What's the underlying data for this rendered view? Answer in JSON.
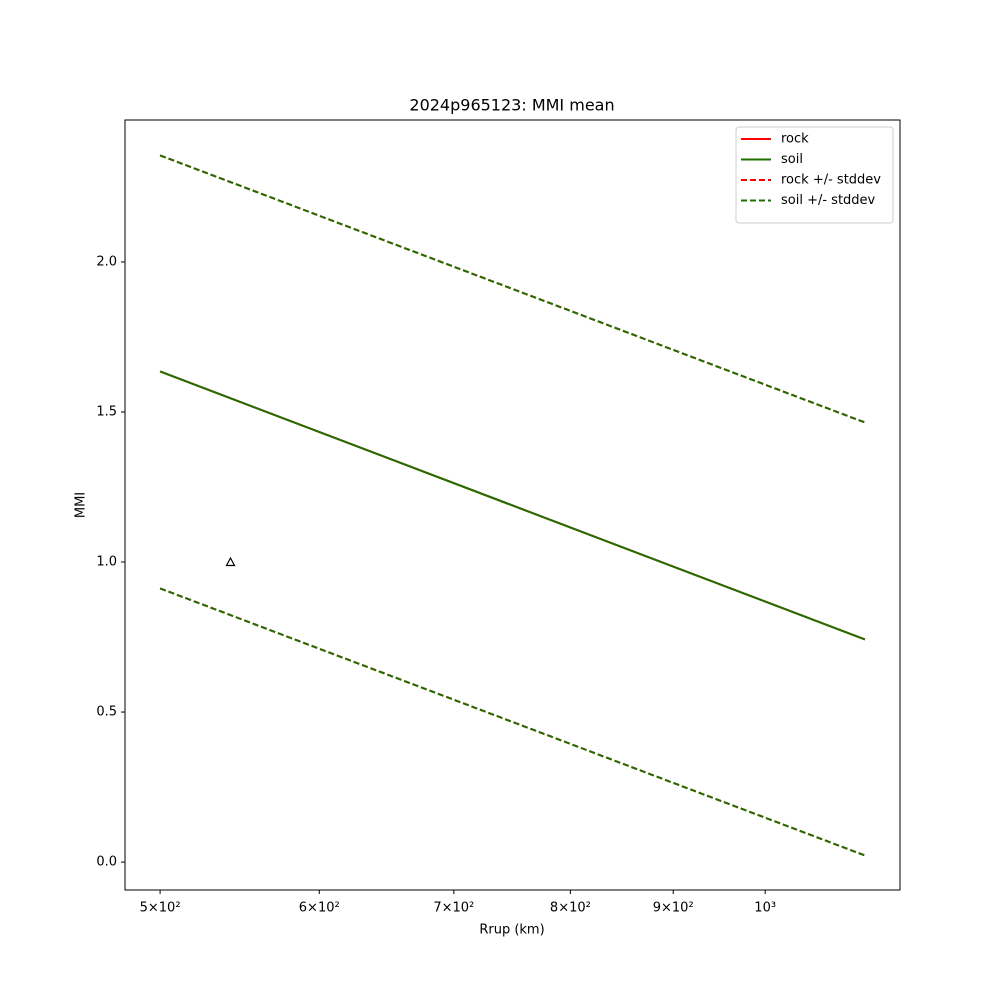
{
  "chart_data": {
    "type": "line",
    "title": "2024p965123: MMI mean",
    "xlabel": "Rrup (km)",
    "ylabel": "MMI",
    "xscale": "log",
    "xlim": [
      480.3,
      1167
    ],
    "ylim": [
      -0.093,
      2.473
    ],
    "xticks": [
      {
        "value": 500,
        "label": "5×10²"
      },
      {
        "value": 600,
        "label": "6×10²"
      },
      {
        "value": 700,
        "label": "7×10²"
      },
      {
        "value": 800,
        "label": "8×10²"
      },
      {
        "value": 900,
        "label": "9×10²"
      },
      {
        "value": 1000,
        "label": "10³"
      }
    ],
    "yticks": [
      {
        "value": 0,
        "label": "0.0"
      },
      0.5,
      {
        "value": 1,
        "label": "1.0"
      },
      1.5,
      {
        "value": 2,
        "label": "2.0"
      }
    ],
    "x": [
      500,
      1121
    ],
    "series": [
      {
        "name": "rock",
        "color": "#ff0000",
        "style": "solid",
        "values": [
          1.635,
          0.742
        ]
      },
      {
        "name": "soil",
        "color": "#1f7000",
        "style": "solid",
        "values": [
          1.635,
          0.742
        ]
      },
      {
        "name": "rock +/- stddev",
        "color": "#ff0000",
        "style": "dashed",
        "upper": [
          2.355,
          1.465
        ],
        "lower": [
          0.912,
          0.022
        ]
      },
      {
        "name": "soil +/- stddev",
        "color": "#1f7000",
        "style": "dashed",
        "upper": [
          2.355,
          1.465
        ],
        "lower": [
          0.912,
          0.022
        ]
      }
    ],
    "points": {
      "x": [
        542
      ],
      "y": [
        1.0
      ],
      "color": "#000000"
    },
    "legend": "upper right"
  }
}
